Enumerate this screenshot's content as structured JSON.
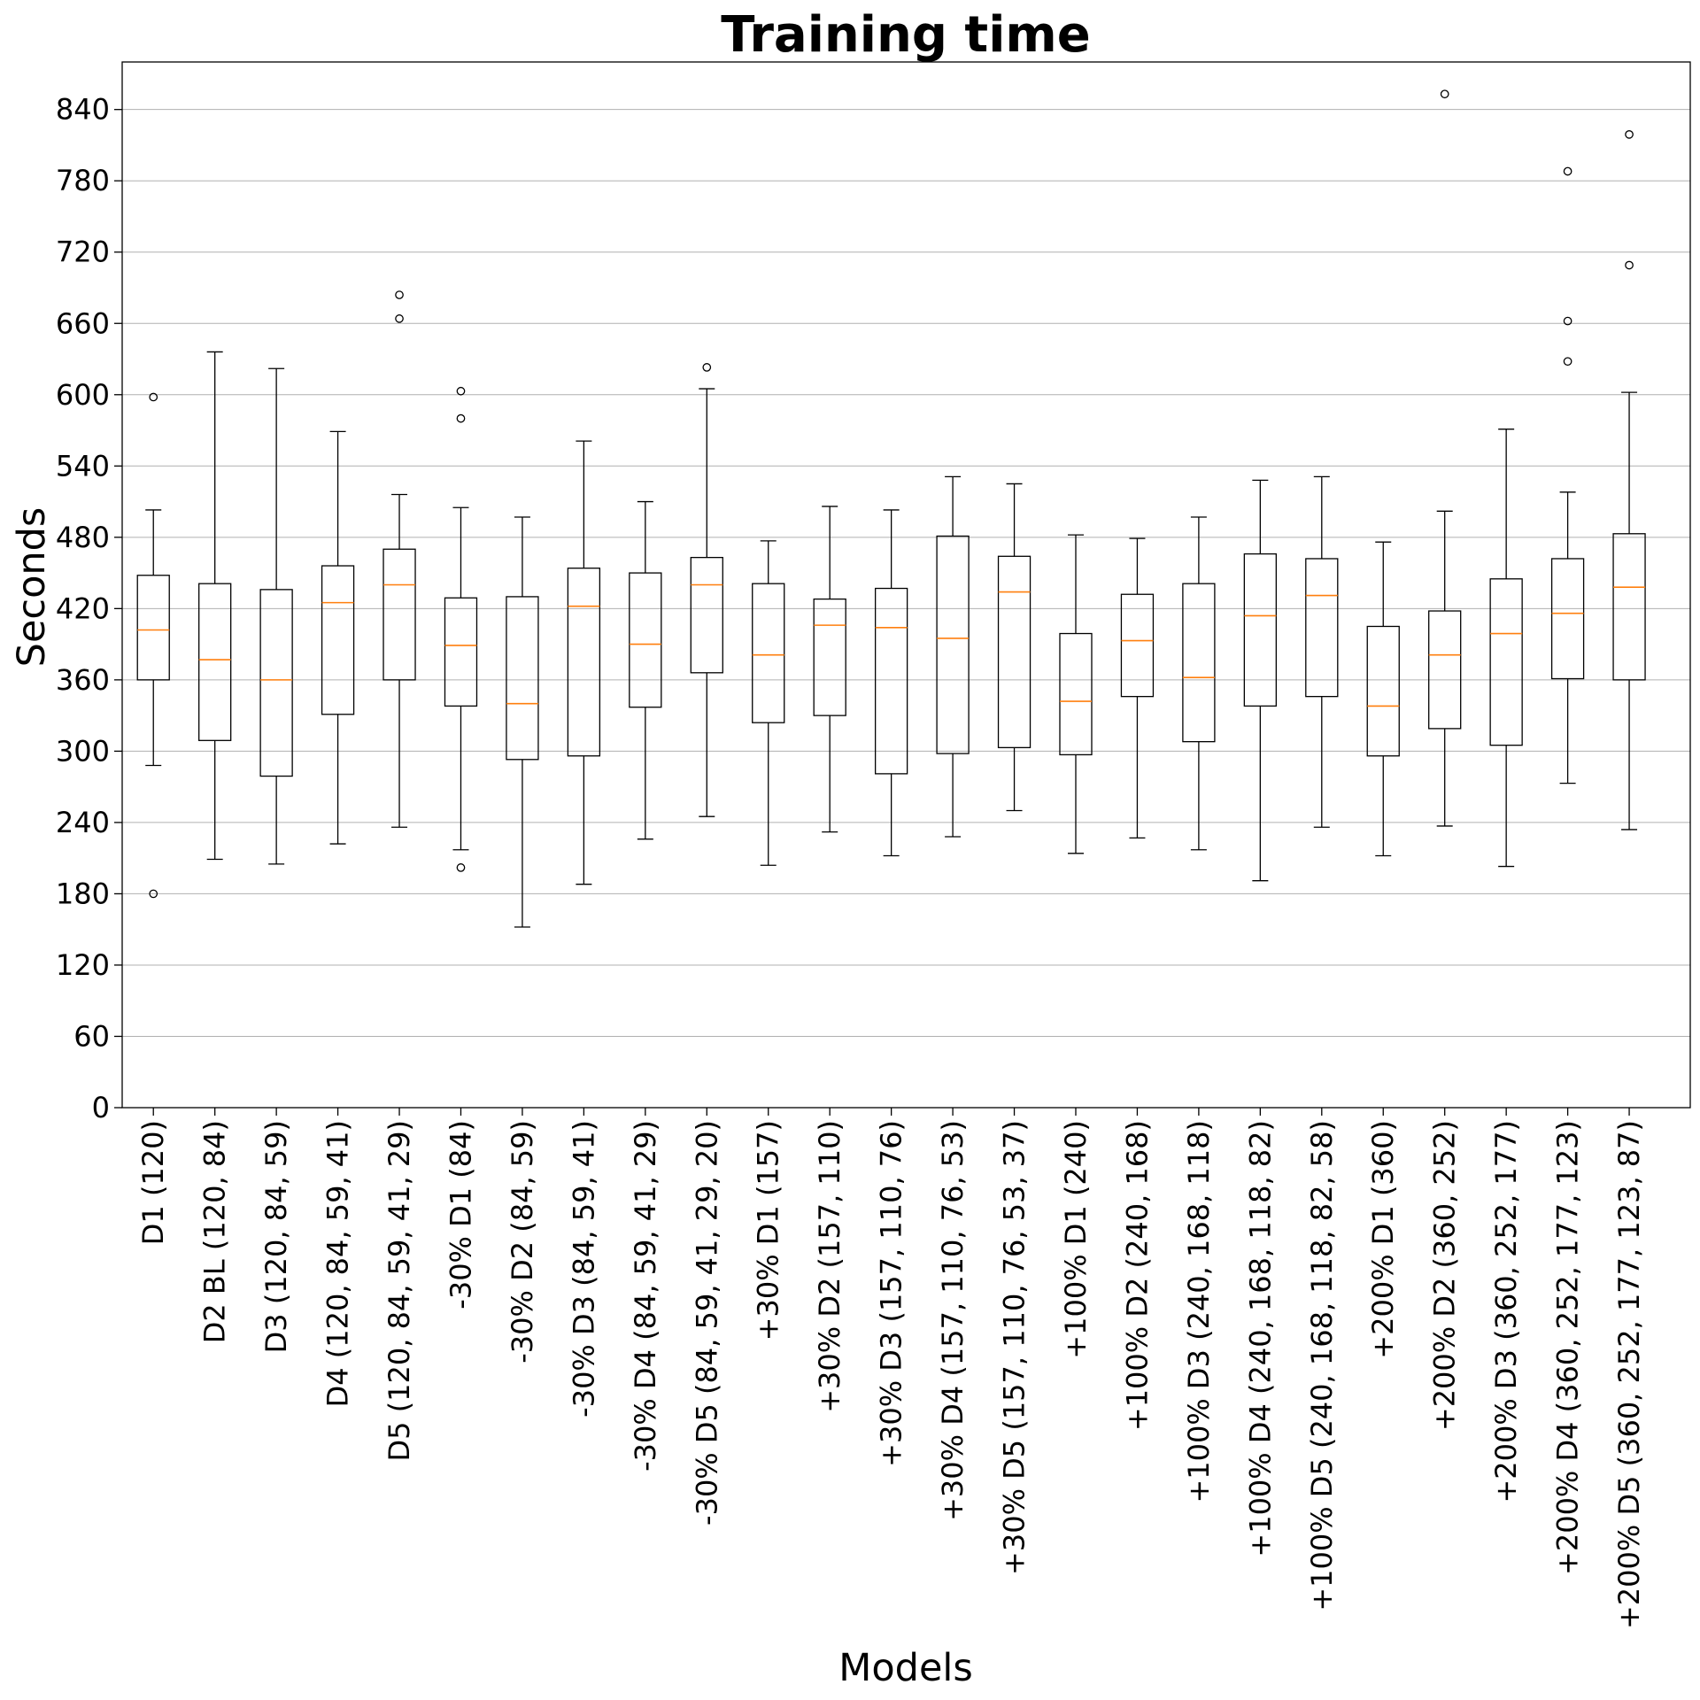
{
  "chart_data": {
    "type": "box",
    "title": "Training time",
    "xlabel": "Models",
    "ylabel": "Seconds",
    "ylim": [
      0,
      880
    ],
    "yticks": [
      0,
      60,
      120,
      180,
      240,
      300,
      360,
      420,
      480,
      540,
      600,
      660,
      720,
      780,
      840
    ],
    "grid": "y",
    "colors": {
      "median": "#ff7f0e",
      "box": "#000000",
      "grid": "#b0b0b0"
    },
    "categories": [
      "D1 (120)",
      "D2 BL (120, 84)",
      "D3 (120, 84, 59)",
      "D4 (120, 84, 59, 41)",
      "D5 (120, 84, 59, 41, 29)",
      "-30% D1 (84)",
      "-30% D2 (84, 59)",
      "-30% D3 (84, 59, 41)",
      "-30% D4 (84, 59, 41, 29)",
      "-30% D5 (84, 59, 41, 29, 20)",
      "+30% D1 (157)",
      "+30% D2 (157, 110)",
      "+30% D3 (157, 110, 76)",
      "+30% D4 (157, 110, 76, 53)",
      "+30% D5 (157, 110, 76, 53, 37)",
      "+100% D1 (240)",
      "+100% D2 (240, 168)",
      "+100% D3 (240, 168, 118)",
      "+100% D4 (240, 168, 118, 82)",
      "+100% D5 (240, 168, 118, 82, 58)",
      "+200% D1 (360)",
      "+200% D2 (360, 252)",
      "+200% D3 (360, 252, 177)",
      "+200% D4 (360, 252, 177, 123)",
      "+200% D5 (360, 252, 177, 123, 87)"
    ],
    "boxes": [
      {
        "whislo": 288,
        "q1": 360,
        "med": 402,
        "q3": 448,
        "whishi": 503,
        "fliers": [
          598,
          180
        ]
      },
      {
        "whislo": 209,
        "q1": 309,
        "med": 377,
        "q3": 441,
        "whishi": 636,
        "fliers": []
      },
      {
        "whislo": 205,
        "q1": 279,
        "med": 360,
        "q3": 436,
        "whishi": 622,
        "fliers": []
      },
      {
        "whislo": 222,
        "q1": 331,
        "med": 425,
        "q3": 456,
        "whishi": 569,
        "fliers": []
      },
      {
        "whislo": 236,
        "q1": 360,
        "med": 440,
        "q3": 470,
        "whishi": 516,
        "fliers": [
          684,
          664
        ]
      },
      {
        "whislo": 217,
        "q1": 338,
        "med": 389,
        "q3": 429,
        "whishi": 505,
        "fliers": [
          603,
          580,
          202
        ]
      },
      {
        "whislo": 152,
        "q1": 293,
        "med": 340,
        "q3": 430,
        "whishi": 497,
        "fliers": []
      },
      {
        "whislo": 188,
        "q1": 296,
        "med": 422,
        "q3": 454,
        "whishi": 561,
        "fliers": []
      },
      {
        "whislo": 226,
        "q1": 337,
        "med": 390,
        "q3": 450,
        "whishi": 510,
        "fliers": []
      },
      {
        "whislo": 245,
        "q1": 366,
        "med": 440,
        "q3": 463,
        "whishi": 605,
        "fliers": [
          623
        ]
      },
      {
        "whislo": 204,
        "q1": 324,
        "med": 381,
        "q3": 441,
        "whishi": 477,
        "fliers": []
      },
      {
        "whislo": 232,
        "q1": 330,
        "med": 406,
        "q3": 428,
        "whishi": 506,
        "fliers": []
      },
      {
        "whislo": 212,
        "q1": 281,
        "med": 404,
        "q3": 437,
        "whishi": 503,
        "fliers": []
      },
      {
        "whislo": 228,
        "q1": 298,
        "med": 395,
        "q3": 481,
        "whishi": 531,
        "fliers": []
      },
      {
        "whislo": 250,
        "q1": 303,
        "med": 434,
        "q3": 464,
        "whishi": 525,
        "fliers": []
      },
      {
        "whislo": 214,
        "q1": 297,
        "med": 342,
        "q3": 399,
        "whishi": 482,
        "fliers": []
      },
      {
        "whislo": 227,
        "q1": 346,
        "med": 393,
        "q3": 432,
        "whishi": 479,
        "fliers": []
      },
      {
        "whislo": 217,
        "q1": 308,
        "med": 362,
        "q3": 441,
        "whishi": 497,
        "fliers": []
      },
      {
        "whislo": 191,
        "q1": 338,
        "med": 414,
        "q3": 466,
        "whishi": 528,
        "fliers": []
      },
      {
        "whislo": 236,
        "q1": 346,
        "med": 431,
        "q3": 462,
        "whishi": 531,
        "fliers": []
      },
      {
        "whislo": 212,
        "q1": 296,
        "med": 338,
        "q3": 405,
        "whishi": 476,
        "fliers": []
      },
      {
        "whislo": 237,
        "q1": 319,
        "med": 381,
        "q3": 418,
        "whishi": 502,
        "fliers": [
          853
        ]
      },
      {
        "whislo": 203,
        "q1": 305,
        "med": 399,
        "q3": 445,
        "whishi": 571,
        "fliers": []
      },
      {
        "whislo": 273,
        "q1": 361,
        "med": 416,
        "q3": 462,
        "whishi": 518,
        "fliers": [
          788,
          662,
          628
        ]
      },
      {
        "whislo": 234,
        "q1": 360,
        "med": 438,
        "q3": 483,
        "whishi": 602,
        "fliers": [
          819,
          709
        ]
      }
    ]
  }
}
